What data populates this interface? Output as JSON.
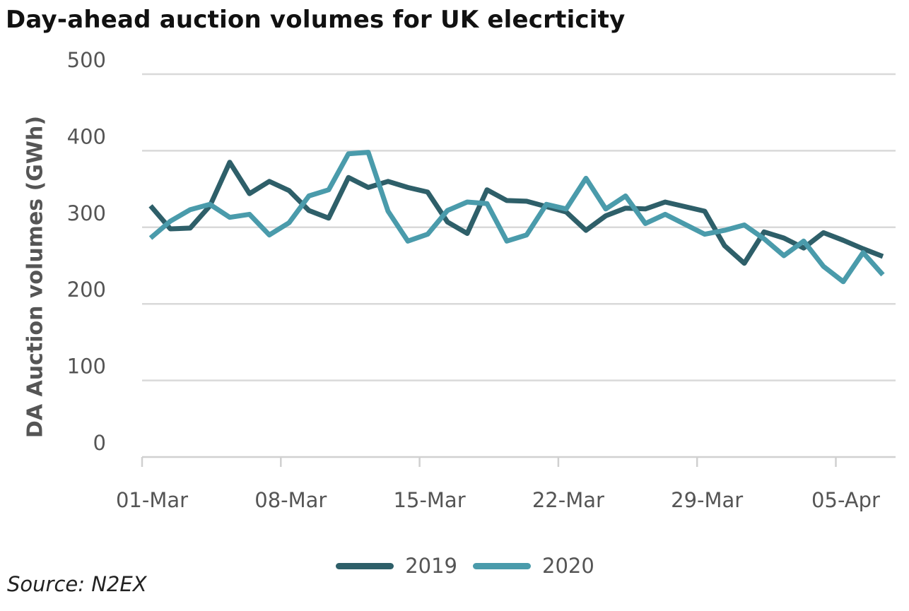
{
  "title": "Day-ahead auction volumes for UK elecrticity",
  "source": "Source: N2EX",
  "colors": {
    "series_2019": "#2e5f69",
    "series_2020": "#4a9bab",
    "grid": "#d9d9d9",
    "axis": "#d0d0d0",
    "text": "#555555"
  },
  "chart_data": {
    "type": "line",
    "title": "Day-ahead auction volumes for UK elecrticity",
    "ylabel": "DA Auction volumes (GWh)",
    "xlabel": "",
    "ylim": [
      0,
      500
    ],
    "yticks": [
      0,
      100,
      200,
      300,
      400,
      500
    ],
    "xtick_labels": [
      "01-Mar",
      "08-Mar",
      "15-Mar",
      "22-Mar",
      "29-Mar",
      "05-Apr"
    ],
    "grid": true,
    "legend_position": "bottom",
    "x": [
      "01-Mar",
      "02-Mar",
      "03-Mar",
      "04-Mar",
      "05-Mar",
      "06-Mar",
      "07-Mar",
      "08-Mar",
      "09-Mar",
      "10-Mar",
      "11-Mar",
      "12-Mar",
      "13-Mar",
      "14-Mar",
      "15-Mar",
      "16-Mar",
      "17-Mar",
      "18-Mar",
      "19-Mar",
      "20-Mar",
      "21-Mar",
      "22-Mar",
      "23-Mar",
      "24-Mar",
      "25-Mar",
      "26-Mar",
      "27-Mar",
      "28-Mar",
      "29-Mar",
      "30-Mar",
      "31-Mar",
      "01-Apr",
      "02-Apr",
      "03-Apr",
      "04-Apr",
      "05-Apr",
      "06-Apr",
      "07-Apr"
    ],
    "series": [
      {
        "name": "2019",
        "values": [
          328,
          298,
          299,
          328,
          385,
          344,
          360,
          348,
          322,
          312,
          365,
          352,
          360,
          352,
          346,
          307,
          292,
          349,
          335,
          334,
          327,
          320,
          296,
          315,
          325,
          324,
          333,
          327,
          321,
          276,
          253,
          294,
          286,
          273,
          293,
          283,
          272,
          262
        ]
      },
      {
        "name": "2020",
        "values": [
          286,
          308,
          323,
          330,
          313,
          317,
          290,
          306,
          341,
          349,
          396,
          398,
          321,
          282,
          291,
          322,
          333,
          331,
          282,
          290,
          330,
          324,
          364,
          324,
          341,
          305,
          317,
          304,
          291,
          296,
          303,
          285,
          263,
          282,
          249,
          229,
          267,
          238
        ]
      }
    ]
  }
}
